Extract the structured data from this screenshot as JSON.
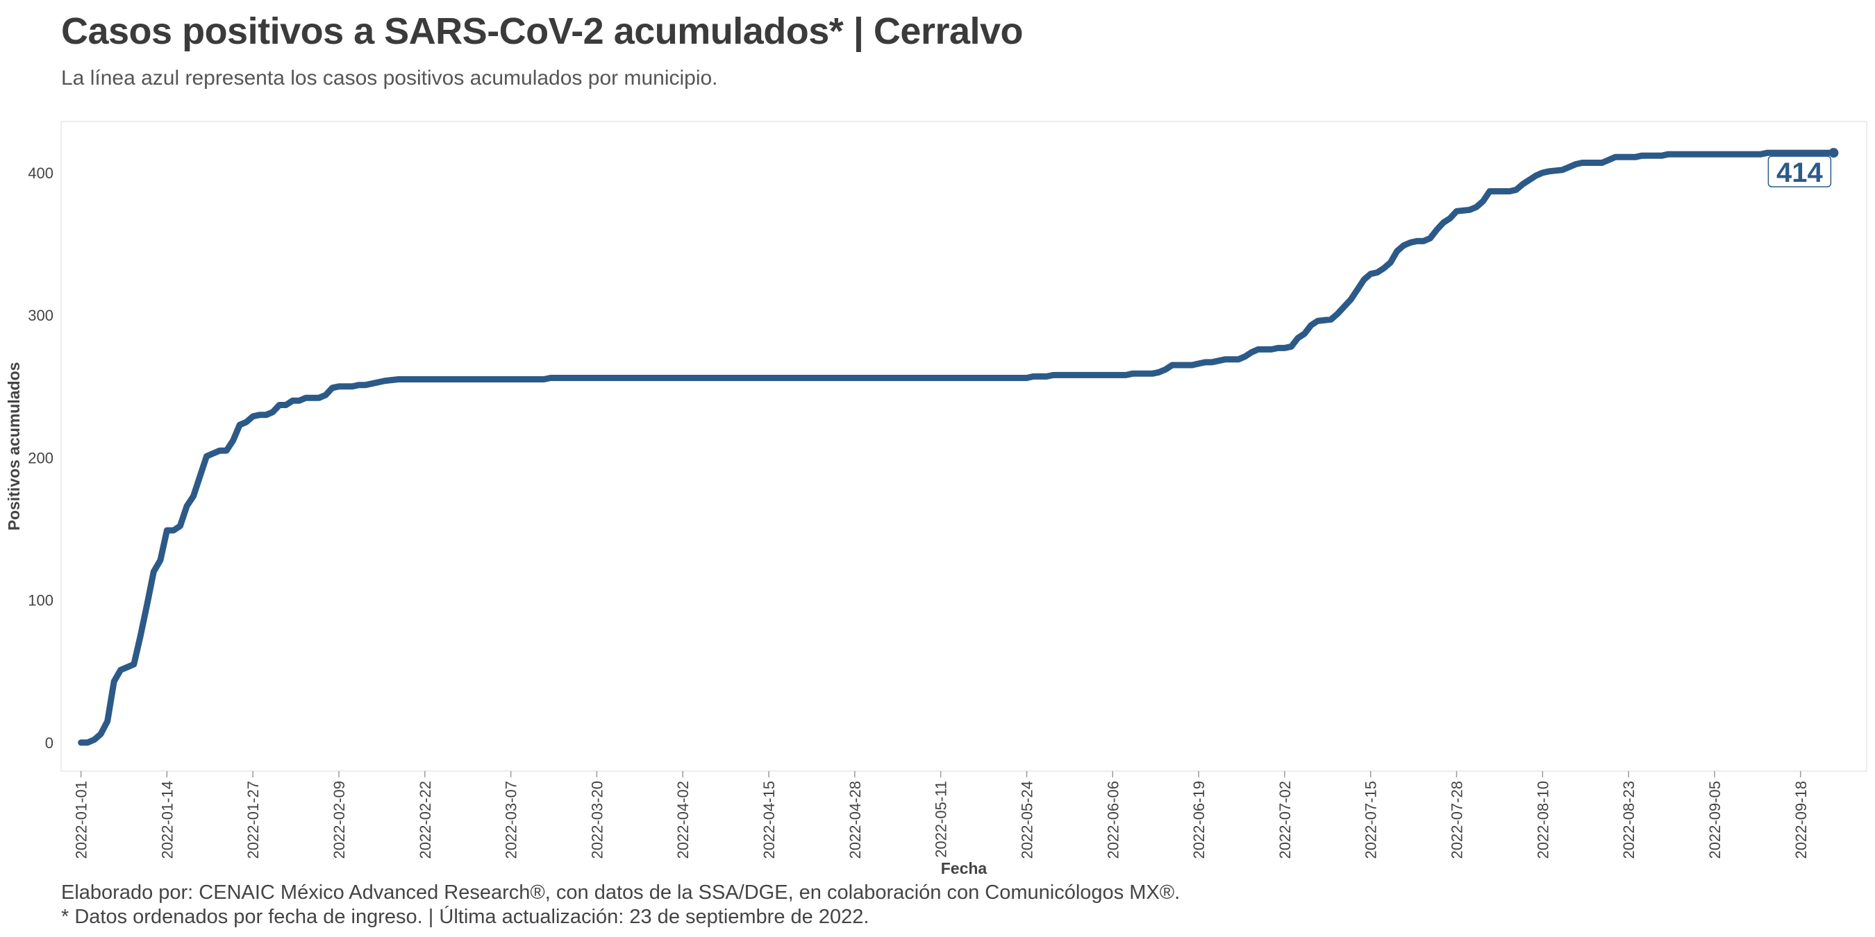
{
  "header": {
    "title": "Casos positivos a SARS-CoV-2 acumulados* | Cerralvo",
    "subtitle": "La línea azul representa los casos positivos acumulados por municipio."
  },
  "footer": {
    "caption_1": "Elaborado por: CENAIC México Advanced Research®, con datos de la SSA/DGE, en colaboración con Comunicólogos MX®.",
    "caption_2": "* Datos ordenados por fecha de ingreso. | Última actualización: 23 de septiembre de 2022."
  },
  "colors": {
    "line": "#2c5a88",
    "axis_text": "#444444",
    "panel_border": "#e6e6e6"
  },
  "chart_data": {
    "type": "line",
    "xlabel": "Fecha",
    "ylabel": "Positivos acumulados",
    "x_type": "date",
    "xlim": [
      "2021-12-29",
      "2022-09-28"
    ],
    "ylim": [
      -20,
      436
    ],
    "y_ticks": [
      0,
      100,
      200,
      300,
      400
    ],
    "x_ticks": [
      "2022-01-01",
      "2022-01-14",
      "2022-01-27",
      "2022-02-09",
      "2022-02-22",
      "2022-03-07",
      "2022-03-20",
      "2022-04-02",
      "2022-04-15",
      "2022-04-28",
      "2022-05-11",
      "2022-05-24",
      "2022-06-06",
      "2022-06-19",
      "2022-07-02",
      "2022-07-15",
      "2022-07-28",
      "2022-08-10",
      "2022-08-23",
      "2022-09-05",
      "2022-09-18"
    ],
    "grid": false,
    "end_label": "414",
    "series": [
      {
        "points": [
          [
            "2022-01-01",
            0
          ],
          [
            "2022-01-02",
            0
          ],
          [
            "2022-01-03",
            2
          ],
          [
            "2022-01-04",
            6
          ],
          [
            "2022-01-05",
            15
          ],
          [
            "2022-01-06",
            43
          ],
          [
            "2022-01-07",
            51
          ],
          [
            "2022-01-08",
            53
          ],
          [
            "2022-01-09",
            55
          ],
          [
            "2022-01-10",
            75
          ],
          [
            "2022-01-11",
            97
          ],
          [
            "2022-01-12",
            120
          ],
          [
            "2022-01-13",
            128
          ],
          [
            "2022-01-14",
            149
          ],
          [
            "2022-01-15",
            149
          ],
          [
            "2022-01-16",
            152
          ],
          [
            "2022-01-17",
            166
          ],
          [
            "2022-01-18",
            173
          ],
          [
            "2022-01-19",
            187
          ],
          [
            "2022-01-20",
            201
          ],
          [
            "2022-01-21",
            203
          ],
          [
            "2022-01-22",
            205
          ],
          [
            "2022-01-23",
            205
          ],
          [
            "2022-01-24",
            212
          ],
          [
            "2022-01-25",
            223
          ],
          [
            "2022-01-26",
            225
          ],
          [
            "2022-01-27",
            229
          ],
          [
            "2022-01-28",
            230
          ],
          [
            "2022-01-29",
            230
          ],
          [
            "2022-01-30",
            232
          ],
          [
            "2022-01-31",
            237
          ],
          [
            "2022-02-01",
            237
          ],
          [
            "2022-02-02",
            240
          ],
          [
            "2022-02-03",
            240
          ],
          [
            "2022-02-04",
            242
          ],
          [
            "2022-02-06",
            242
          ],
          [
            "2022-02-07",
            244
          ],
          [
            "2022-02-08",
            249
          ],
          [
            "2022-02-09",
            250
          ],
          [
            "2022-02-11",
            250
          ],
          [
            "2022-02-12",
            251
          ],
          [
            "2022-02-13",
            251
          ],
          [
            "2022-02-14",
            252
          ],
          [
            "2022-02-15",
            253
          ],
          [
            "2022-02-16",
            254
          ],
          [
            "2022-02-18",
            255
          ],
          [
            "2022-03-12",
            255
          ],
          [
            "2022-03-13",
            256
          ],
          [
            "2022-05-24",
            256
          ],
          [
            "2022-05-25",
            257
          ],
          [
            "2022-05-27",
            257
          ],
          [
            "2022-05-28",
            258
          ],
          [
            "2022-06-08",
            258
          ],
          [
            "2022-06-09",
            259
          ],
          [
            "2022-06-12",
            259
          ],
          [
            "2022-06-13",
            260
          ],
          [
            "2022-06-14",
            262
          ],
          [
            "2022-06-15",
            265
          ],
          [
            "2022-06-18",
            265
          ],
          [
            "2022-06-19",
            266
          ],
          [
            "2022-06-20",
            267
          ],
          [
            "2022-06-21",
            267
          ],
          [
            "2022-06-22",
            268
          ],
          [
            "2022-06-23",
            269
          ],
          [
            "2022-06-25",
            269
          ],
          [
            "2022-06-26",
            271
          ],
          [
            "2022-06-27",
            274
          ],
          [
            "2022-06-28",
            276
          ],
          [
            "2022-06-30",
            276
          ],
          [
            "2022-07-01",
            277
          ],
          [
            "2022-07-02",
            277
          ],
          [
            "2022-07-03",
            278
          ],
          [
            "2022-07-04",
            284
          ],
          [
            "2022-07-05",
            287
          ],
          [
            "2022-07-06",
            293
          ],
          [
            "2022-07-07",
            296
          ],
          [
            "2022-07-09",
            297
          ],
          [
            "2022-07-10",
            301
          ],
          [
            "2022-07-11",
            306
          ],
          [
            "2022-07-12",
            311
          ],
          [
            "2022-07-13",
            318
          ],
          [
            "2022-07-14",
            325
          ],
          [
            "2022-07-15",
            329
          ],
          [
            "2022-07-16",
            330
          ],
          [
            "2022-07-17",
            333
          ],
          [
            "2022-07-18",
            337
          ],
          [
            "2022-07-19",
            345
          ],
          [
            "2022-07-20",
            349
          ],
          [
            "2022-07-21",
            351
          ],
          [
            "2022-07-22",
            352
          ],
          [
            "2022-07-23",
            352
          ],
          [
            "2022-07-24",
            354
          ],
          [
            "2022-07-25",
            360
          ],
          [
            "2022-07-26",
            365
          ],
          [
            "2022-07-27",
            368
          ],
          [
            "2022-07-28",
            373
          ],
          [
            "2022-07-30",
            374
          ],
          [
            "2022-07-31",
            376
          ],
          [
            "2022-08-01",
            380
          ],
          [
            "2022-08-02",
            387
          ],
          [
            "2022-08-05",
            387
          ],
          [
            "2022-08-06",
            388
          ],
          [
            "2022-08-07",
            392
          ],
          [
            "2022-08-08",
            395
          ],
          [
            "2022-08-09",
            398
          ],
          [
            "2022-08-10",
            400
          ],
          [
            "2022-08-11",
            401
          ],
          [
            "2022-08-13",
            402
          ],
          [
            "2022-08-14",
            404
          ],
          [
            "2022-08-15",
            406
          ],
          [
            "2022-08-16",
            407
          ],
          [
            "2022-08-19",
            407
          ],
          [
            "2022-08-20",
            409
          ],
          [
            "2022-08-21",
            411
          ],
          [
            "2022-08-24",
            411
          ],
          [
            "2022-08-25",
            412
          ],
          [
            "2022-08-28",
            412
          ],
          [
            "2022-08-29",
            413
          ],
          [
            "2022-09-12",
            413
          ],
          [
            "2022-09-13",
            414
          ],
          [
            "2022-09-23",
            414
          ]
        ]
      }
    ]
  }
}
